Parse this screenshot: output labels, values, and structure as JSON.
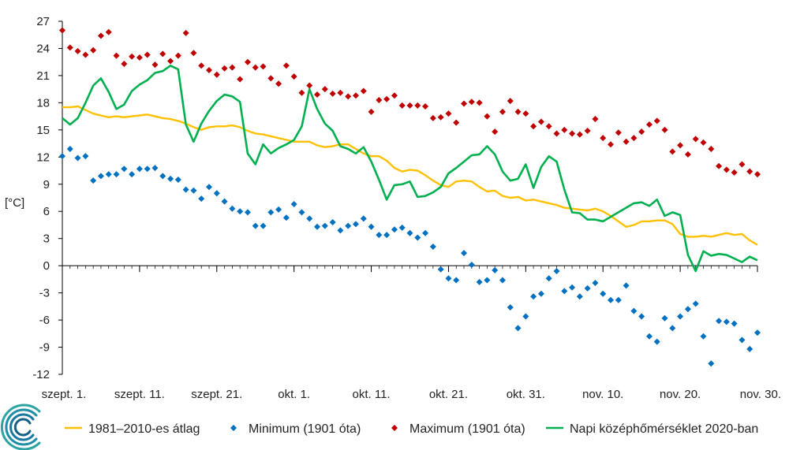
{
  "chart_data": {
    "type": "line",
    "ylabel": "[°C]",
    "ylim": [
      -12,
      27
    ],
    "yticks": [
      27,
      24,
      21,
      18,
      15,
      12,
      9,
      6,
      3,
      0,
      -3,
      -6,
      -9,
      -12
    ],
    "xlim": [
      1,
      91
    ],
    "xticks": [
      {
        "day": 1,
        "label": "szept. 1."
      },
      {
        "day": 11,
        "label": "szept. 11."
      },
      {
        "day": 21,
        "label": "szept. 21."
      },
      {
        "day": 31,
        "label": "okt. 1."
      },
      {
        "day": 41,
        "label": "okt. 11."
      },
      {
        "day": 51,
        "label": "okt. 21."
      },
      {
        "day": 61,
        "label": "okt. 31."
      },
      {
        "day": 71,
        "label": "nov. 10."
      },
      {
        "day": 81,
        "label": "nov. 20."
      },
      {
        "day": 91,
        "label": "nov. 30."
      }
    ],
    "colors": {
      "avg": "#ffc000",
      "min": "#0070c0",
      "max": "#c00000",
      "daily": "#00b050",
      "axis": "#000000"
    },
    "grid": false,
    "legend_placement": "bottom",
    "series": [
      {
        "key": "avg",
        "name": "1981–2010-es átlag",
        "kind": "line",
        "values": [
          17.5,
          17.5,
          17.6,
          17.2,
          16.8,
          16.6,
          16.4,
          16.5,
          16.4,
          16.5,
          16.6,
          16.7,
          16.5,
          16.3,
          16.2,
          16.0,
          15.7,
          15.3,
          15.0,
          15.3,
          15.4,
          15.4,
          15.5,
          15.3,
          14.9,
          14.6,
          14.5,
          14.3,
          14.1,
          13.9,
          13.7,
          13.7,
          13.7,
          13.3,
          13.1,
          13.2,
          13.4,
          13.4,
          12.9,
          12.4,
          12.1,
          12.1,
          11.6,
          10.8,
          10.4,
          10.6,
          10.5,
          10.0,
          9.4,
          8.9,
          8.7,
          9.3,
          9.4,
          9.3,
          8.7,
          8.2,
          8.3,
          7.7,
          7.5,
          7.6,
          7.2,
          7.3,
          7.1,
          6.9,
          6.7,
          6.4,
          6.3,
          6.2,
          6.1,
          6.3,
          6.0,
          5.5,
          4.9,
          4.3,
          4.5,
          4.9,
          4.9,
          5.0,
          5.0,
          4.6,
          3.5,
          3.2,
          3.2,
          3.3,
          3.2,
          3.4,
          3.6,
          3.4,
          3.5,
          2.8,
          2.3
        ]
      },
      {
        "key": "min",
        "name": "Minimum (1901 óta)",
        "kind": "marker",
        "marker": "diamond",
        "values": [
          12.1,
          12.9,
          11.9,
          12.1,
          9.4,
          9.9,
          10.1,
          10.1,
          10.7,
          10.1,
          10.7,
          10.7,
          10.8,
          9.9,
          9.6,
          9.5,
          8.4,
          8.3,
          7.4,
          8.7,
          8.0,
          7.1,
          6.3,
          6.0,
          5.9,
          4.4,
          4.4,
          5.9,
          6.2,
          5.3,
          6.8,
          5.9,
          5.2,
          4.3,
          4.4,
          4.8,
          3.9,
          4.4,
          4.6,
          5.2,
          4.3,
          3.4,
          3.4,
          4.0,
          4.2,
          3.6,
          3.1,
          3.6,
          2.1,
          -0.4,
          -1.4,
          -1.6,
          1.4,
          0.1,
          -1.8,
          -1.6,
          -0.5,
          -1.6,
          -4.6,
          -6.9,
          -5.6,
          -3.4,
          -3.1,
          -1.4,
          -0.6,
          -2.8,
          -2.4,
          -3.4,
          -2.5,
          -1.9,
          -3.1,
          -3.8,
          -3.8,
          -2.2,
          -5.0,
          -5.6,
          -7.8,
          -8.4,
          -5.8,
          -6.9,
          -5.6,
          -4.8,
          -4.2,
          -7.8,
          -10.8,
          -6.1,
          -6.2,
          -6.4,
          -8.2,
          -9.2,
          -7.4
        ]
      },
      {
        "key": "max",
        "name": "Maximum (1901 óta)",
        "kind": "marker",
        "marker": "diamond",
        "values": [
          26.0,
          24.1,
          23.7,
          23.3,
          23.8,
          25.4,
          25.8,
          23.2,
          22.3,
          23.1,
          23.0,
          23.3,
          22.2,
          23.4,
          22.6,
          23.2,
          25.7,
          23.5,
          22.1,
          21.6,
          21.1,
          21.8,
          21.9,
          20.6,
          22.5,
          21.9,
          22.0,
          20.7,
          20.1,
          22.1,
          20.9,
          19.1,
          19.9,
          18.9,
          19.5,
          19.0,
          19.1,
          18.7,
          18.8,
          19.3,
          17.0,
          18.3,
          18.4,
          18.8,
          17.7,
          17.7,
          17.7,
          17.6,
          16.3,
          16.4,
          16.8,
          15.8,
          17.9,
          18.1,
          18.0,
          16.5,
          14.8,
          17.0,
          18.2,
          17.0,
          16.8,
          15.4,
          15.9,
          15.4,
          14.6,
          15.0,
          14.6,
          14.5,
          14.9,
          16.2,
          14.1,
          13.4,
          14.7,
          13.7,
          14.1,
          14.8,
          15.6,
          16.0,
          15.0,
          12.6,
          13.3,
          12.3,
          14.0,
          13.6,
          12.9,
          11.0,
          10.6,
          10.3,
          11.2,
          10.4,
          10.1
        ]
      },
      {
        "key": "max_last",
        "name": "",
        "kind": "marker",
        "marker": "diamond",
        "hidden_legend": true,
        "values": []
      },
      {
        "key": "daily",
        "name": "Napi középhőmérséklet 2020-ban",
        "kind": "line",
        "values": [
          16.3,
          15.6,
          16.3,
          18.0,
          19.9,
          20.7,
          19.2,
          17.3,
          17.8,
          19.3,
          20.0,
          20.5,
          21.3,
          21.5,
          22.1,
          21.7,
          15.6,
          13.7,
          15.7,
          17.1,
          18.2,
          18.9,
          18.7,
          18.1,
          12.4,
          11.2,
          13.4,
          12.4,
          13.0,
          13.4,
          13.9,
          15.4,
          19.5,
          17.3,
          15.7,
          14.9,
          13.2,
          12.9,
          12.4,
          13.1,
          11.5,
          9.5,
          7.3,
          8.9,
          9.0,
          9.3,
          7.6,
          7.7,
          8.1,
          8.7,
          10.2,
          10.8,
          11.5,
          12.2,
          12.3,
          13.2,
          12.3,
          10.4,
          9.4,
          9.6,
          11.2,
          8.6,
          10.9,
          12.1,
          11.5,
          8.4,
          5.9,
          5.8,
          5.1,
          5.1,
          4.9,
          5.4,
          5.9,
          6.4,
          6.9,
          7.0,
          6.6,
          7.3,
          5.5,
          5.9,
          5.6,
          1.2,
          -0.6,
          1.6,
          1.1,
          1.3,
          1.2,
          0.8,
          0.4,
          1.0,
          0.6
        ]
      }
    ]
  },
  "legend": {
    "items": [
      {
        "key": "avg",
        "label": "1981–2010-es átlag"
      },
      {
        "key": "min",
        "label": "Minimum (1901 óta)"
      },
      {
        "key": "max",
        "label": "Maximum (1901 óta)"
      },
      {
        "key": "daily",
        "label": "Napi középhőmérséklet 2020-ban"
      }
    ]
  },
  "logo": {
    "icon": "met-service-swirl-logo"
  }
}
